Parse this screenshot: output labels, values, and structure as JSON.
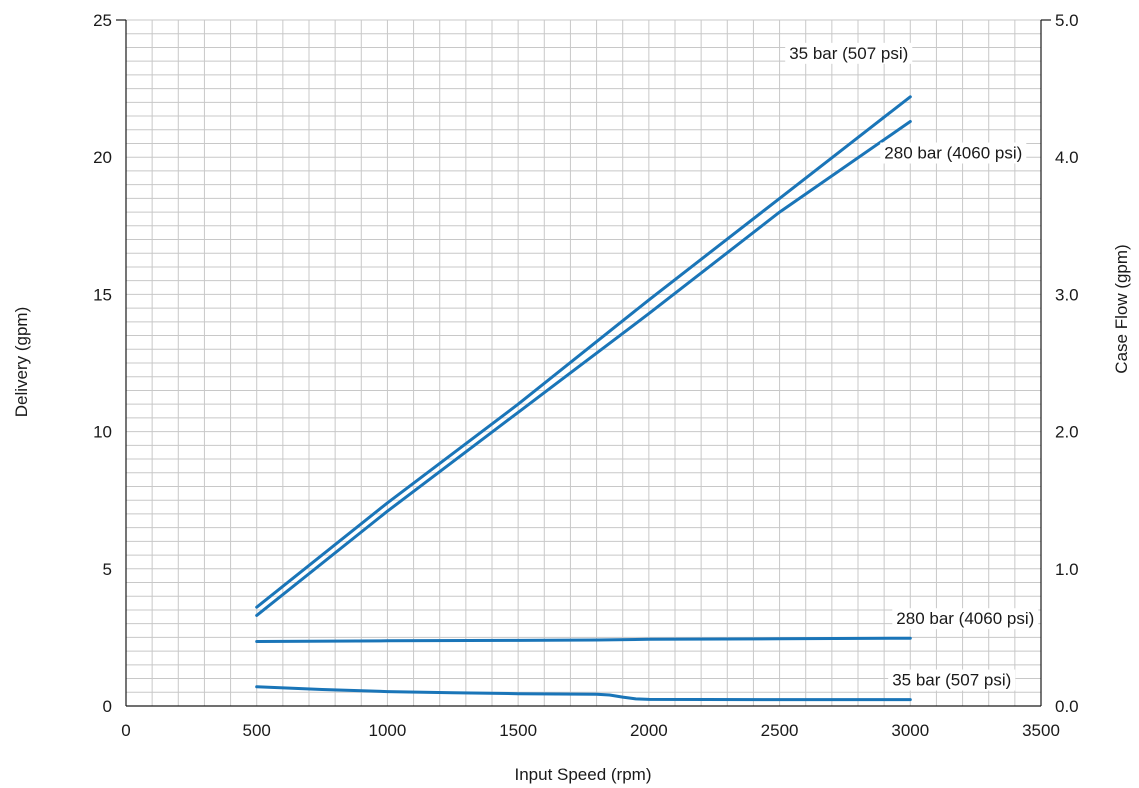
{
  "chart_data": {
    "type": "line",
    "title": "",
    "xlabel": "Input Speed (rpm)",
    "ylabel": "Delivery (gpm)",
    "y2label": "Case Flow (gpm)",
    "xlim": [
      0,
      3500
    ],
    "ylim": [
      0,
      25
    ],
    "y2lim": [
      0,
      5.0
    ],
    "x_ticks": [
      "0",
      "500",
      "1000",
      "1500",
      "2000",
      "2500",
      "3000",
      "3500"
    ],
    "y_ticks": [
      "0",
      "5",
      "10",
      "15",
      "20",
      "25"
    ],
    "y2_ticks": [
      "0.0",
      "1.0",
      "2.0",
      "3.0",
      "4.0",
      "5.0"
    ],
    "grid": true,
    "line_color": "#1a75b8",
    "series": [
      {
        "name": "35 bar (507 psi)",
        "axis": "left",
        "x": [
          500,
          1000,
          1500,
          2000,
          2500,
          3000
        ],
        "y": [
          3.6,
          7.4,
          11.0,
          14.8,
          18.5,
          22.2
        ]
      },
      {
        "name": "280 bar (4060 psi)",
        "axis": "left",
        "x": [
          500,
          1000,
          1500,
          2000,
          2500,
          3000
        ],
        "y": [
          3.3,
          7.1,
          10.7,
          14.3,
          18.0,
          21.3
        ]
      },
      {
        "name": "280 bar (4060 psi)",
        "axis": "right",
        "x": [
          500,
          1000,
          1500,
          1800,
          2000,
          2500,
          3000
        ],
        "y": [
          0.47,
          0.475,
          0.478,
          0.481,
          0.486,
          0.49,
          0.494
        ]
      },
      {
        "name": "35 bar (507 psi)",
        "axis": "right",
        "x": [
          500,
          750,
          1000,
          1250,
          1500,
          1800,
          1850,
          1900,
          1950,
          2000,
          2500,
          3000
        ],
        "y": [
          0.14,
          0.12,
          0.105,
          0.097,
          0.09,
          0.086,
          0.08,
          0.065,
          0.052,
          0.048,
          0.047,
          0.047
        ]
      }
    ]
  }
}
